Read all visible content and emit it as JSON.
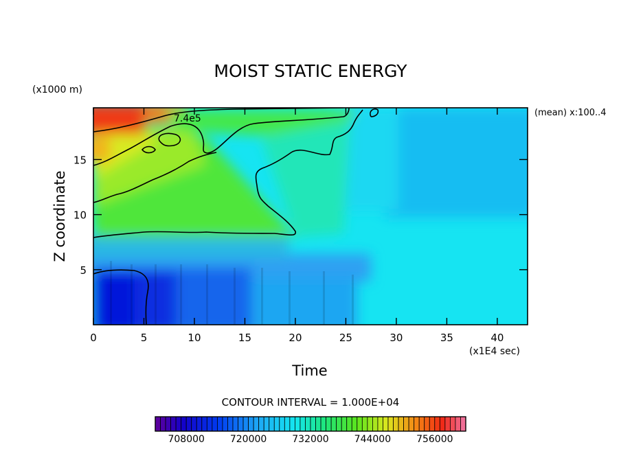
{
  "chart_data": {
    "type": "heatmap",
    "title": "MOIST STATIC ENERGY",
    "xlabel": "Time",
    "ylabel": "Z coordinate",
    "x_units": "(x1E4 sec)",
    "y_units": "(x1000 m)",
    "corner_note": "(mean) x:100..4",
    "contour_interval": "CONTOUR INTERVAL = 1.000E+04",
    "contour_label": "7.4e5",
    "xlim": [
      0,
      43
    ],
    "ylim": [
      0,
      19.7
    ],
    "x_ticks": [
      0,
      5,
      10,
      15,
      20,
      25,
      30,
      35,
      40
    ],
    "y_ticks": [
      5,
      10,
      15
    ],
    "colorbar": {
      "min": 702000,
      "max": 762000,
      "step": 1000,
      "tick_values": [
        708000,
        720000,
        732000,
        744000,
        756000
      ]
    },
    "field_description_values": {
      "near_surface_early": 708000,
      "lower_levels_late": 722000,
      "mid_upper_early": 736000,
      "top_early": 758000
    }
  }
}
